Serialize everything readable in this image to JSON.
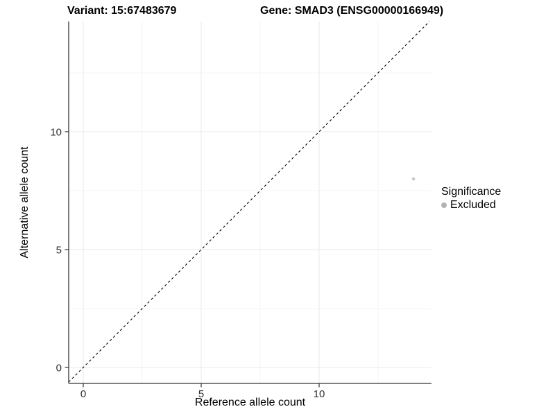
{
  "chart_data": {
    "type": "scatter",
    "titles": {
      "left": "Variant: 15:67483679",
      "right": "Gene: SMAD3 (ENSG00000166949)"
    },
    "xlabel": "Reference allele count",
    "ylabel": "Alternative allele count",
    "xlim": [
      -0.62,
      14.76
    ],
    "ylim": [
      -0.68,
      14.68
    ],
    "x_ticks": [
      0,
      5,
      10
    ],
    "y_ticks": [
      0,
      5,
      10
    ],
    "x_minor_ticks": [
      2.5,
      7.5,
      12.5
    ],
    "y_minor_ticks": [
      2.5,
      7.5,
      12.5
    ],
    "grid": true,
    "points": [
      {
        "x": 14,
        "y": 8,
        "significance": "Excluded"
      }
    ],
    "abline": {
      "slope": 1,
      "intercept": 0,
      "style": "dashed"
    },
    "legend": {
      "title": "Significance",
      "position": "right",
      "items": [
        {
          "label": "Excluded"
        }
      ]
    },
    "colors": {
      "point": "#c9c9c9",
      "legend_key": "#b2b2b2",
      "axis_line": "#333333",
      "grid_major": "#e9e9e9",
      "grid_minor": "#f4f4f4",
      "abline": "#000000",
      "tick_label": "#303030",
      "background": "#ffffff"
    }
  }
}
